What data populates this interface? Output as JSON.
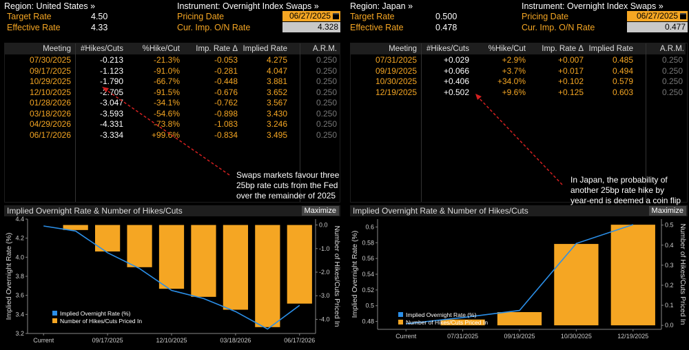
{
  "left": {
    "region": "Region: United States »",
    "instrument": "Instrument: Overnight Index Swaps »",
    "target_label": "Target Rate",
    "target_value": "4.50",
    "effective_label": "Effective Rate",
    "effective_value": "4.33",
    "pricing_label": "Pricing Date",
    "pricing_value": "06/27/2025",
    "imp_label": "Cur. Imp. O/N Rate",
    "imp_value": "4.328",
    "columns": [
      "Meeting",
      "#Hikes/Cuts",
      "%Hike/Cut",
      "Imp. Rate Δ",
      "Implied Rate",
      "A.R.M."
    ],
    "rows": [
      [
        "07/30/2025",
        "-0.213",
        "-21.3%",
        "-0.053",
        "4.275",
        "0.250"
      ],
      [
        "09/17/2025",
        "-1.123",
        "-91.0%",
        "-0.281",
        "4.047",
        "0.250"
      ],
      [
        "10/29/2025",
        "-1.790",
        "-66.7%",
        "-0.448",
        "3.881",
        "0.250"
      ],
      [
        "12/10/2025",
        "-2.705",
        "-91.5%",
        "-0.676",
        "3.652",
        "0.250"
      ],
      [
        "01/28/2026",
        "-3.047",
        "-34.1%",
        "-0.762",
        "3.567",
        "0.250"
      ],
      [
        "03/18/2026",
        "-3.593",
        "-54.6%",
        "-0.898",
        "3.430",
        "0.250"
      ],
      [
        "04/29/2026",
        "-4.331",
        "-73.8%",
        "-1.083",
        "3.246",
        "0.250"
      ],
      [
        "06/17/2026",
        "-3.334",
        "+99.6%",
        "-0.834",
        "3.495",
        "0.250"
      ]
    ],
    "annotation": [
      "Swaps markets favour three",
      "25bp rate cuts from the Fed",
      "over the remainder of 2025"
    ],
    "chart_title": "Implied Overnight Rate & Number of Hikes/Cuts",
    "maximize": "Maximize"
  },
  "right": {
    "region": "Region: Japan »",
    "instrument": "Instrument: Overnight Index Swaps »",
    "target_label": "Target Rate",
    "target_value": "0.500",
    "effective_label": "Effective Rate",
    "effective_value": "0.478",
    "pricing_label": "Pricing Date",
    "pricing_value": "06/27/2025",
    "imp_label": "Cur. Imp. O/N Rate",
    "imp_value": "0.477",
    "columns": [
      "Meeting",
      "#Hikes/Cuts",
      "%Hike/Cut",
      "Imp. Rate Δ",
      "Implied Rate",
      "A.R.M."
    ],
    "rows": [
      [
        "07/31/2025",
        "+0.029",
        "+2.9%",
        "+0.007",
        "0.485",
        "0.250"
      ],
      [
        "09/19/2025",
        "+0.066",
        "+3.7%",
        "+0.017",
        "0.494",
        "0.250"
      ],
      [
        "10/30/2025",
        "+0.406",
        "+34.0%",
        "+0.102",
        "0.579",
        "0.250"
      ],
      [
        "12/19/2025",
        "+0.502",
        "+9.6%",
        "+0.125",
        "0.603",
        "0.250"
      ]
    ],
    "annotation": [
      "In Japan, the probability of",
      "another 25bp rate hike by",
      "year-end is deemed a coin flip"
    ],
    "chart_title": "Implied Overnight Rate & Number of Hikes/Cuts",
    "maximize": "Maximize"
  },
  "colors": {
    "accent": "#f5a623",
    "line": "#2b8fe8",
    "arrow": "#d42020",
    "header_bg": "#1e1e1e"
  },
  "chart_data": [
    {
      "type": "bar",
      "title": "Implied Overnight Rate & Number of Hikes/Cuts",
      "ylabel": "Implied Overnight Rate (%)",
      "y2label": "Number of Hikes/Cuts Priced In",
      "categories": [
        "Current",
        "07/30/2025",
        "09/17/2025",
        "10/29/2025",
        "12/10/2025",
        "01/28/2026",
        "03/18/2026",
        "04/29/2026",
        "06/17/2026"
      ],
      "xtick_labels": [
        "Current",
        "09/17/2025",
        "12/10/2025",
        "03/18/2026",
        "06/17/2026"
      ],
      "ylim": [
        3.2,
        4.4
      ],
      "yticks": [
        "4.4",
        "4.2",
        "4.0",
        "3.8",
        "3.6",
        "3.4",
        "3.2"
      ],
      "y2lim": [
        -4.6,
        0.25
      ],
      "y2ticks": [
        "0.0",
        "-1.0",
        "-2.0",
        "-3.0",
        "-4.0"
      ],
      "series": [
        {
          "name": "Implied Overnight Rate (%)",
          "kind": "line",
          "values": [
            4.328,
            4.275,
            4.047,
            3.881,
            3.652,
            3.567,
            3.43,
            3.246,
            3.495
          ]
        },
        {
          "name": "Number of Hikes/Cuts Priced In",
          "kind": "bar",
          "values": [
            null,
            -0.213,
            -1.123,
            -1.79,
            -2.705,
            -3.047,
            -3.593,
            -4.331,
            -3.334
          ]
        }
      ],
      "legend": "bottom-left"
    },
    {
      "type": "bar",
      "title": "Implied Overnight Rate & Number of Hikes/Cuts",
      "ylabel": "Implied Overnight Rate (%)",
      "y2label": "Number of Hikes/Cuts Priced In",
      "categories": [
        "Current",
        "07/31/2025",
        "09/19/2025",
        "10/30/2025",
        "12/19/2025"
      ],
      "xtick_labels": [
        "Current",
        "07/31/2025",
        "09/19/2025",
        "10/30/2025",
        "12/19/2025"
      ],
      "ylim": [
        0.47,
        0.61
      ],
      "yticks": [
        "0.6",
        "0.58",
        "0.56",
        "0.54",
        "0.52",
        "0.5",
        "0.48"
      ],
      "y2lim": [
        -0.02,
        0.53
      ],
      "y2ticks": [
        "0.5",
        "0.4",
        "0.3",
        "0.2",
        "0.1",
        "0.0"
      ],
      "series": [
        {
          "name": "Implied Overnight Rate (%)",
          "kind": "line",
          "values": [
            0.477,
            0.485,
            0.494,
            0.579,
            0.603
          ]
        },
        {
          "name": "Number of Hikes/Cuts Priced In",
          "kind": "bar",
          "values": [
            null,
            0.029,
            0.066,
            0.406,
            0.502
          ]
        }
      ],
      "legend": "bottom-left"
    }
  ]
}
